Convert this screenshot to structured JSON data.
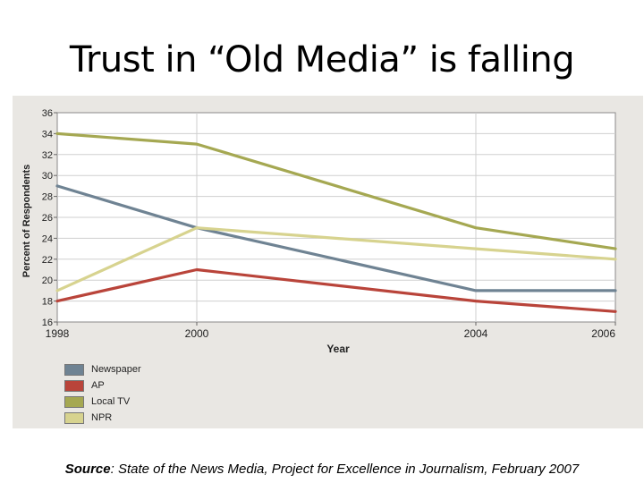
{
  "slide": {
    "title": "Trust in “Old Media” is falling",
    "source_label": "Source",
    "source_text": ": State of the News Media, Project for Excellence in Journalism, February 2007"
  },
  "chart_data": {
    "type": "line",
    "title": "",
    "xlabel": "Year",
    "ylabel": "Percent of Respondents",
    "x": [
      1998,
      2000,
      2004,
      2006
    ],
    "x_ticks": [
      "1998",
      "2000",
      "2004",
      "2006"
    ],
    "ylim": [
      16,
      36
    ],
    "y_ticks": [
      16,
      18,
      20,
      22,
      24,
      26,
      28,
      30,
      32,
      34,
      36
    ],
    "grid": true,
    "legend_position": "bottom-left",
    "series": [
      {
        "name": "Newspaper",
        "color": "#6f8393",
        "values": [
          29,
          25,
          19,
          19
        ]
      },
      {
        "name": "AP",
        "color": "#b9443a",
        "values": [
          18,
          21,
          18,
          17
        ]
      },
      {
        "name": "Local TV",
        "color": "#a5a852",
        "values": [
          34,
          33,
          25,
          23
        ]
      },
      {
        "name": "NPR",
        "color": "#d7d38f",
        "values": [
          19,
          25,
          23,
          22
        ]
      }
    ]
  }
}
